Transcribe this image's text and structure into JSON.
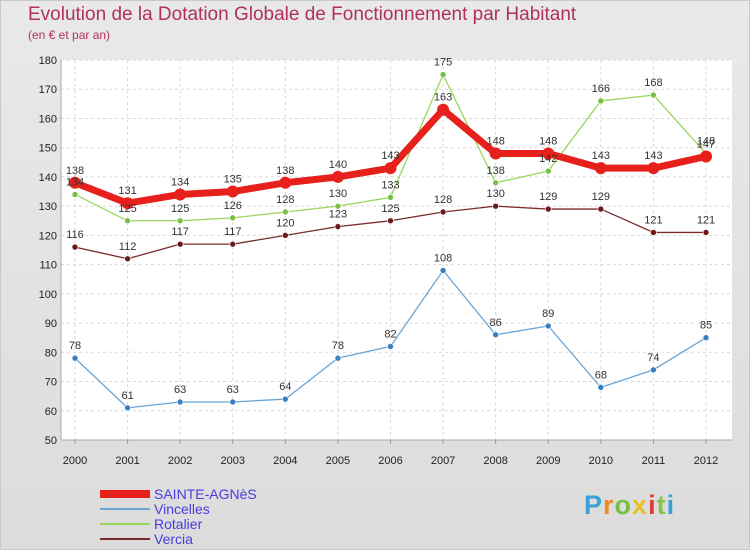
{
  "header": {
    "title": "Evolution de la Dotation Globale de Fonctionnement par Habitant",
    "subtitle": "(en € et par an)"
  },
  "logo": {
    "text": "Proxiti",
    "colors": [
      "#3aa0d8",
      "#f08a1c",
      "#76c043",
      "#e8c020",
      "#e03a3a",
      "#8bc34a",
      "#3aa0d8"
    ]
  },
  "chart_data": {
    "type": "line",
    "title": "Evolution de la Dotation Globale de Fonctionnement par Habitant",
    "subtitle": "(en € et par an)",
    "xlabel": "",
    "ylabel": "",
    "x": [
      "2000",
      "2001",
      "2002",
      "2003",
      "2004",
      "2005",
      "2006",
      "2007",
      "2008",
      "2009",
      "2010",
      "2011",
      "2012"
    ],
    "ylim": [
      50,
      180
    ],
    "yticks": [
      50,
      60,
      70,
      80,
      90,
      100,
      110,
      120,
      130,
      140,
      150,
      160,
      170,
      180
    ],
    "grid": true,
    "legend": "bottom-left",
    "series": [
      {
        "name": "SAINTE-AGNèS",
        "color": "#e8201c",
        "width": 7,
        "marker_color": "#e8201c",
        "values": [
          138,
          131,
          134,
          135,
          138,
          140,
          143,
          163,
          148,
          148,
          143,
          143,
          147
        ]
      },
      {
        "name": "Vincelles",
        "color": "#6aa5d6",
        "width": 1.3,
        "marker_color": "#3a7fc1",
        "values": [
          78,
          61,
          63,
          63,
          64,
          78,
          82,
          108,
          86,
          89,
          68,
          74,
          85
        ]
      },
      {
        "name": "Rotalier",
        "color": "#9ad65a",
        "width": 1.3,
        "marker_color": "#76c043",
        "values": [
          134,
          125,
          125,
          126,
          128,
          130,
          133,
          175,
          138,
          142,
          166,
          168,
          148
        ]
      },
      {
        "name": "Vercia",
        "color": "#7a2a2a",
        "width": 1.3,
        "marker_color": "#6a1a1a",
        "values": [
          116,
          112,
          117,
          117,
          120,
          123,
          125,
          128,
          130,
          129,
          129,
          121,
          121
        ]
      }
    ]
  }
}
